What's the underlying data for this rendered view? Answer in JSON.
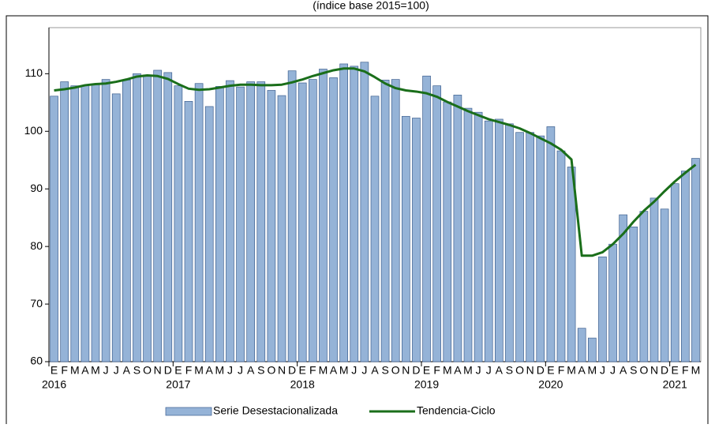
{
  "chart_data": {
    "type": "bar-line",
    "subtitle": "(índice base 2015=100)",
    "categories": [
      "E",
      "F",
      "M",
      "A",
      "M",
      "J",
      "J",
      "A",
      "S",
      "O",
      "N",
      "D",
      "E",
      "F",
      "M",
      "A",
      "M",
      "J",
      "J",
      "A",
      "S",
      "O",
      "N",
      "D",
      "E",
      "F",
      "M",
      "A",
      "M",
      "J",
      "J",
      "A",
      "S",
      "O",
      "N",
      "D",
      "E",
      "F",
      "M",
      "A",
      "M",
      "J",
      "J",
      "A",
      "S",
      "O",
      "N",
      "D",
      "E",
      "F",
      "M",
      "A",
      "M",
      "J",
      "J",
      "A",
      "S",
      "O",
      "N",
      "D",
      "E",
      "F",
      "M"
    ],
    "years": [
      "2016",
      "2017",
      "2018",
      "2019",
      "2020",
      "2021"
    ],
    "series": [
      {
        "name": "Serie Desestacionalizada",
        "type": "bar",
        "color": "#95b3d7",
        "values": [
          106.1,
          108.6,
          107.9,
          108.0,
          108.1,
          109.0,
          106.5,
          108.9,
          110.0,
          109.8,
          110.6,
          110.2,
          107.9,
          105.2,
          108.3,
          104.3,
          107.8,
          108.8,
          107.7,
          108.6,
          108.6,
          107.1,
          106.2,
          110.5,
          108.4,
          109.0,
          110.8,
          109.3,
          111.7,
          111.3,
          112.0,
          106.1,
          108.9,
          109.0,
          102.6,
          102.3,
          109.6,
          107.9,
          105.1,
          106.3,
          104.0,
          103.3,
          101.8,
          102.1,
          101.3,
          99.8,
          99.8,
          99.2,
          100.8,
          96.6,
          93.8,
          65.8,
          64.1,
          78.2,
          80.4,
          85.5,
          83.4,
          86.1,
          88.4,
          86.5,
          90.9,
          93.1,
          95.3
        ]
      },
      {
        "name": "Tendencia-Ciclo",
        "type": "line",
        "color": "#1a6e1a",
        "values": [
          107.1,
          107.3,
          107.6,
          108.0,
          108.2,
          108.3,
          108.6,
          109.0,
          109.5,
          109.7,
          109.6,
          109.1,
          108.2,
          107.4,
          107.2,
          107.3,
          107.6,
          107.9,
          108.1,
          108.1,
          108.0,
          108.0,
          108.1,
          108.5,
          109.0,
          109.6,
          110.1,
          110.6,
          110.9,
          110.9,
          110.4,
          109.4,
          108.3,
          107.5,
          107.1,
          106.9,
          106.6,
          106.0,
          105.1,
          104.3,
          103.5,
          102.8,
          102.1,
          101.6,
          101.1,
          100.5,
          99.7,
          98.8,
          97.9,
          96.8,
          95.1,
          78.4,
          78.4,
          79.0,
          80.4,
          82.2,
          84.3,
          86.2,
          87.8,
          89.6,
          91.3,
          92.8,
          94.2
        ]
      }
    ],
    "ylim": [
      60,
      118
    ],
    "yticks": [
      60,
      70,
      80,
      90,
      100,
      110
    ],
    "grid": false,
    "legend": "bottom"
  }
}
